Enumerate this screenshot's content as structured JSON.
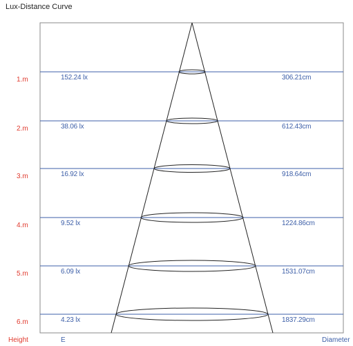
{
  "title": "Lux-Distance Curve",
  "footer": {
    "height_label": "Height",
    "e_label": "E",
    "diameter_label": "Diameter"
  },
  "colors": {
    "height": "#e03a2e",
    "values": "#3d5fa8",
    "lines": "#3d5fa8",
    "frame": "#8a8a8a",
    "cone": "#222222"
  },
  "levels": [
    {
      "height": "1.m",
      "lux": "152.24 lx",
      "diameter": "306.21cm"
    },
    {
      "height": "2.m",
      "lux": "38.06 lx",
      "diameter": "612.43cm"
    },
    {
      "height": "3.m",
      "lux": "16.92 lx",
      "diameter": "918.64cm"
    },
    {
      "height": "4.m",
      "lux": "9.52 lx",
      "diameter": "1224.86cm"
    },
    {
      "height": "5.m",
      "lux": "6.09 lx",
      "diameter": "1531.07cm"
    },
    {
      "height": "6.m",
      "lux": "4.23 lx",
      "diameter": "1837.29cm"
    }
  ]
}
